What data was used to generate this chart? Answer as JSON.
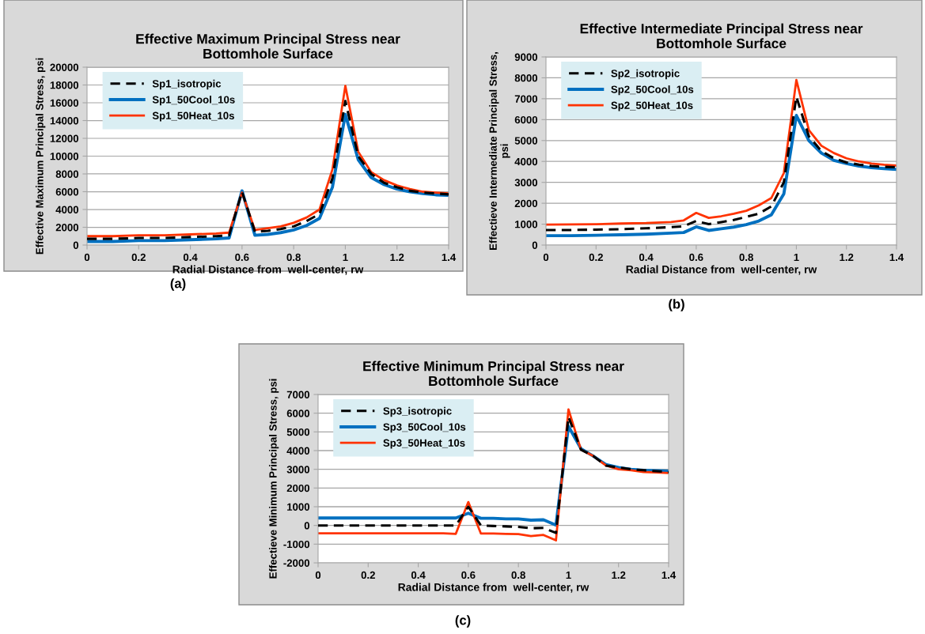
{
  "chart_data": [
    {
      "type": "line",
      "title": "Effective Maximum Principal Stress near\nBottomhole Surface",
      "xlabel": "Radial Distance from  well-center, rw",
      "ylabel": "Effective Maximum Principal Stress, psi",
      "annotations": [
        "(a)"
      ],
      "x": [
        0,
        0.1,
        0.2,
        0.3,
        0.4,
        0.5,
        0.55,
        0.6,
        0.65,
        0.7,
        0.75,
        0.8,
        0.85,
        0.9,
        0.95,
        1.0,
        1.05,
        1.1,
        1.15,
        1.2,
        1.25,
        1.3,
        1.35,
        1.4
      ],
      "xlim": [
        0,
        1.4
      ],
      "xticks": [
        0,
        0.2,
        0.4,
        0.6,
        0.8,
        1,
        1.2,
        1.4
      ],
      "ylim": [
        0,
        20000
      ],
      "yticks": [
        0,
        2000,
        4000,
        6000,
        8000,
        10000,
        12000,
        14000,
        16000,
        18000,
        20000
      ],
      "grid": "y",
      "legend": "top left",
      "marker": "none",
      "series": [
        {
          "name": "Sp1_isotropic",
          "color": "#000000",
          "line_style": "dashed",
          "values": [
            700,
            700,
            800,
            800,
            900,
            1000,
            1100,
            6000,
            1500,
            1600,
            1800,
            2100,
            2700,
            3500,
            7500,
            16200,
            10000,
            8000,
            7000,
            6500,
            6100,
            5900,
            5800,
            5700
          ]
        },
        {
          "name": "Sp1_50Cool_10s",
          "color": "#0070c0",
          "line_style": "solid",
          "values": [
            400,
            400,
            500,
            500,
            600,
            700,
            800,
            6100,
            1100,
            1200,
            1400,
            1700,
            2200,
            3000,
            6500,
            14700,
            9600,
            7600,
            6800,
            6300,
            6000,
            5800,
            5650,
            5600
          ]
        },
        {
          "name": "Sp1_50Heat_10s",
          "color": "#ff3300",
          "line_style": "solid",
          "values": [
            1000,
            1000,
            1100,
            1100,
            1200,
            1300,
            1400,
            5900,
            1700,
            1900,
            2100,
            2500,
            3100,
            4000,
            8500,
            17900,
            10500,
            8200,
            7300,
            6700,
            6300,
            6000,
            5900,
            5800
          ]
        }
      ]
    },
    {
      "type": "line",
      "title": "Effective Intermediate Principal Stress near\nBottomhole Surface",
      "xlabel": "Radial Distance from  well-center, rw",
      "ylabel": "Effectieve Intermediate Principal Stress,\npsi",
      "annotations": [
        "(b)"
      ],
      "x": [
        0,
        0.1,
        0.2,
        0.3,
        0.4,
        0.5,
        0.55,
        0.6,
        0.65,
        0.7,
        0.75,
        0.8,
        0.85,
        0.9,
        0.95,
        1.0,
        1.05,
        1.1,
        1.15,
        1.2,
        1.25,
        1.3,
        1.35,
        1.4
      ],
      "xlim": [
        0,
        1.4
      ],
      "xticks": [
        0,
        0.2,
        0.4,
        0.6,
        0.8,
        1,
        1.2,
        1.4
      ],
      "ylim": [
        0,
        9000
      ],
      "yticks": [
        0,
        1000,
        2000,
        3000,
        4000,
        5000,
        6000,
        7000,
        8000,
        9000
      ],
      "grid": "y",
      "legend": "top left",
      "marker": "none",
      "series": [
        {
          "name": "Sp2_isotropic",
          "color": "#000000",
          "line_style": "dashed",
          "values": [
            720,
            720,
            740,
            760,
            800,
            860,
            900,
            1150,
            1000,
            1100,
            1200,
            1350,
            1500,
            1850,
            3000,
            7100,
            5200,
            4500,
            4150,
            3950,
            3850,
            3780,
            3740,
            3720
          ]
        },
        {
          "name": "Sp2_50Cool_10s",
          "color": "#0070c0",
          "line_style": "solid",
          "values": [
            450,
            450,
            470,
            490,
            520,
            570,
            600,
            870,
            700,
            780,
            860,
            980,
            1150,
            1450,
            2450,
            6200,
            5000,
            4400,
            4050,
            3900,
            3780,
            3700,
            3660,
            3620
          ]
        },
        {
          "name": "Sp2_50Heat_10s",
          "color": "#ff3300",
          "line_style": "solid",
          "values": [
            980,
            990,
            1000,
            1030,
            1050,
            1100,
            1180,
            1540,
            1300,
            1380,
            1500,
            1640,
            1900,
            2250,
            3450,
            7900,
            5500,
            4750,
            4400,
            4150,
            4000,
            3900,
            3840,
            3800
          ]
        }
      ]
    },
    {
      "type": "line",
      "title": "Effective Minimum Principal Stress near\nBottomhole Surface",
      "xlabel": "Radial Distance from  well-center, rw",
      "ylabel": "Effectieve Minimum Principal Stress, psi",
      "annotations": [
        "(c)"
      ],
      "x": [
        0,
        0.1,
        0.2,
        0.3,
        0.4,
        0.5,
        0.55,
        0.6,
        0.65,
        0.7,
        0.75,
        0.8,
        0.85,
        0.9,
        0.95,
        1.0,
        1.05,
        1.1,
        1.15,
        1.2,
        1.25,
        1.3,
        1.35,
        1.4
      ],
      "xlim": [
        0,
        1.4
      ],
      "xticks": [
        0,
        0.2,
        0.4,
        0.6,
        0.8,
        1,
        1.2,
        1.4
      ],
      "ylim": [
        -2000,
        7000
      ],
      "yticks": [
        -2000,
        -1000,
        0,
        1000,
        2000,
        3000,
        4000,
        5000,
        6000,
        7000
      ],
      "grid": "y",
      "legend": "top left",
      "marker": "none",
      "series": [
        {
          "name": "Sp3_isotropic",
          "color": "#000000",
          "line_style": "dashed",
          "values": [
            0,
            0,
            0,
            0,
            0,
            0,
            0,
            1000,
            0,
            -30,
            -50,
            -80,
            -150,
            -130,
            -400,
            5800,
            4050,
            3700,
            3200,
            3100,
            3000,
            2950,
            2900,
            2850
          ]
        },
        {
          "name": "Sp3_50Cool_10s",
          "color": "#0070c0",
          "line_style": "solid",
          "values": [
            400,
            400,
            400,
            400,
            400,
            400,
            400,
            650,
            380,
            380,
            350,
            350,
            280,
            300,
            20,
            5300,
            4100,
            3700,
            3250,
            3100,
            3000,
            2950,
            2930,
            2900
          ]
        },
        {
          "name": "Sp3_50Heat_10s",
          "color": "#ff3300",
          "line_style": "solid",
          "values": [
            -420,
            -420,
            -420,
            -420,
            -420,
            -420,
            -450,
            1250,
            -430,
            -430,
            -450,
            -460,
            -570,
            -510,
            -800,
            6200,
            4050,
            3700,
            3200,
            3000,
            2950,
            2850,
            2830,
            2800
          ]
        }
      ]
    }
  ]
}
